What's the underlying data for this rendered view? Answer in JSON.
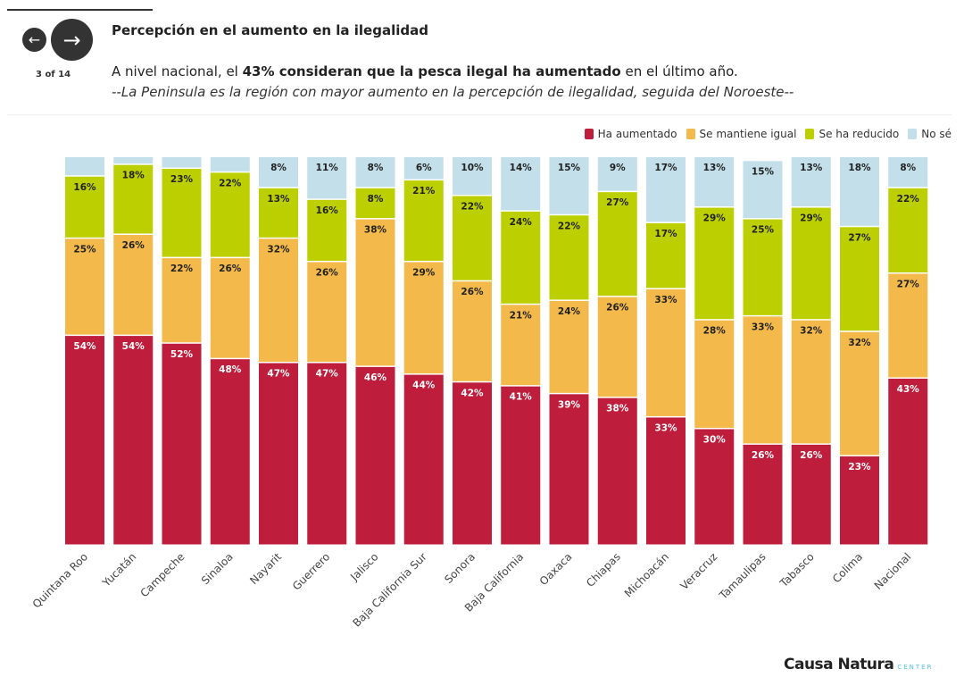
{
  "nav": {
    "prev_icon": "arrow-left-icon",
    "next_icon": "arrow-right-icon",
    "pager": "3 of 14"
  },
  "header": {
    "title": "Percepción en el aumento en la ilegalidad",
    "sub_pre": "A nivel nacional, el ",
    "sub_bold": "43% consideran que la pesca ilegal ha aumentado",
    "sub_post": " en el último año.",
    "sub2": "--La Peninsula es la región con mayor aumento en la percepción de ilegalidad, seguida del Noroeste--"
  },
  "logo": {
    "name": "Causa Natura",
    "tag": "CENTER"
  },
  "chart_data": {
    "type": "bar",
    "stacked": true,
    "ylim": [
      0,
      100
    ],
    "legend_position": "top-right",
    "categories": [
      "Quintana Roo",
      "Yucatán",
      "Campeche",
      "Sinaloa",
      "Nayarit",
      "Guerrero",
      "Jalisco",
      "Baja California Sur",
      "Sonora",
      "Baja California",
      "Oaxaca",
      "Chiapas",
      "Michoacán",
      "Veracruz",
      "Tamaulipas",
      "Tabasco",
      "Colima",
      "Nacional"
    ],
    "series": [
      {
        "name": "Ha aumentado",
        "color": "#be1e3c",
        "label_color": "#ffffff",
        "values": [
          54,
          54,
          52,
          48,
          47,
          47,
          46,
          44,
          42,
          41,
          39,
          38,
          33,
          30,
          26,
          26,
          23,
          43
        ]
      },
      {
        "name": "Se mantiene igual",
        "color": "#f3b94a",
        "label_color": "#222222",
        "values": [
          25,
          26,
          22,
          26,
          32,
          26,
          38,
          29,
          26,
          21,
          24,
          26,
          33,
          28,
          33,
          32,
          32,
          27
        ]
      },
      {
        "name": "Se ha reducido",
        "color": "#bccf00",
        "label_color": "#222222",
        "values": [
          16,
          18,
          23,
          22,
          13,
          16,
          8,
          21,
          22,
          24,
          22,
          27,
          17,
          29,
          25,
          29,
          27,
          22
        ]
      },
      {
        "name": "No sé",
        "color": "#c2dfea",
        "label_color": "#222222",
        "values": [
          5,
          2,
          3,
          4,
          8,
          11,
          8,
          6,
          10,
          14,
          15,
          9,
          17,
          13,
          15,
          13,
          18,
          8
        ],
        "labeled": [
          false,
          false,
          false,
          false,
          true,
          true,
          true,
          true,
          true,
          true,
          true,
          true,
          true,
          true,
          true,
          true,
          true,
          true
        ]
      }
    ]
  }
}
